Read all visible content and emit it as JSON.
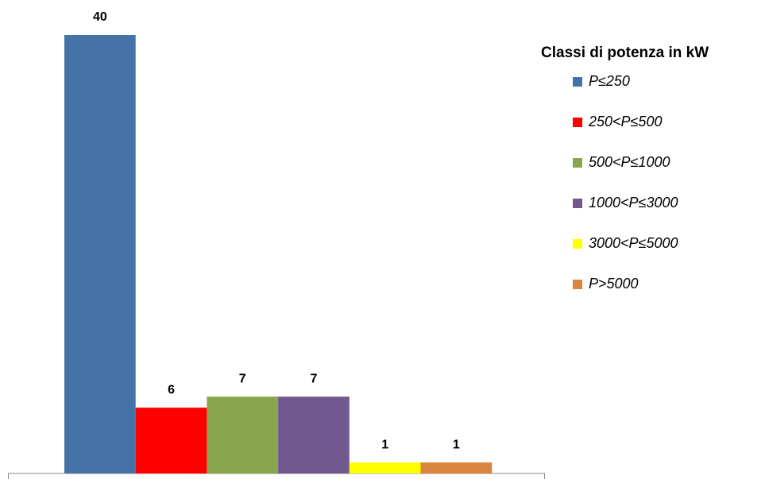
{
  "chart_data": {
    "type": "bar",
    "legend_title": "Classi di potenza in kW",
    "series": [
      {
        "name": "P≤250",
        "color": "#4572a7",
        "values": [
          40
        ]
      },
      {
        "name": "250<P≤500",
        "color": "#ff0000",
        "values": [
          6
        ]
      },
      {
        "name": "500<P≤1000",
        "color": "#89a54e",
        "values": [
          7
        ]
      },
      {
        "name": "1000<P≤3000",
        "color": "#71588f",
        "values": [
          7
        ]
      },
      {
        "name": "3000<P≤5000",
        "color": "#ffff00",
        "values": [
          1
        ]
      },
      {
        "name": "P>5000",
        "color": "#db843d",
        "values": [
          1
        ]
      }
    ]
  }
}
